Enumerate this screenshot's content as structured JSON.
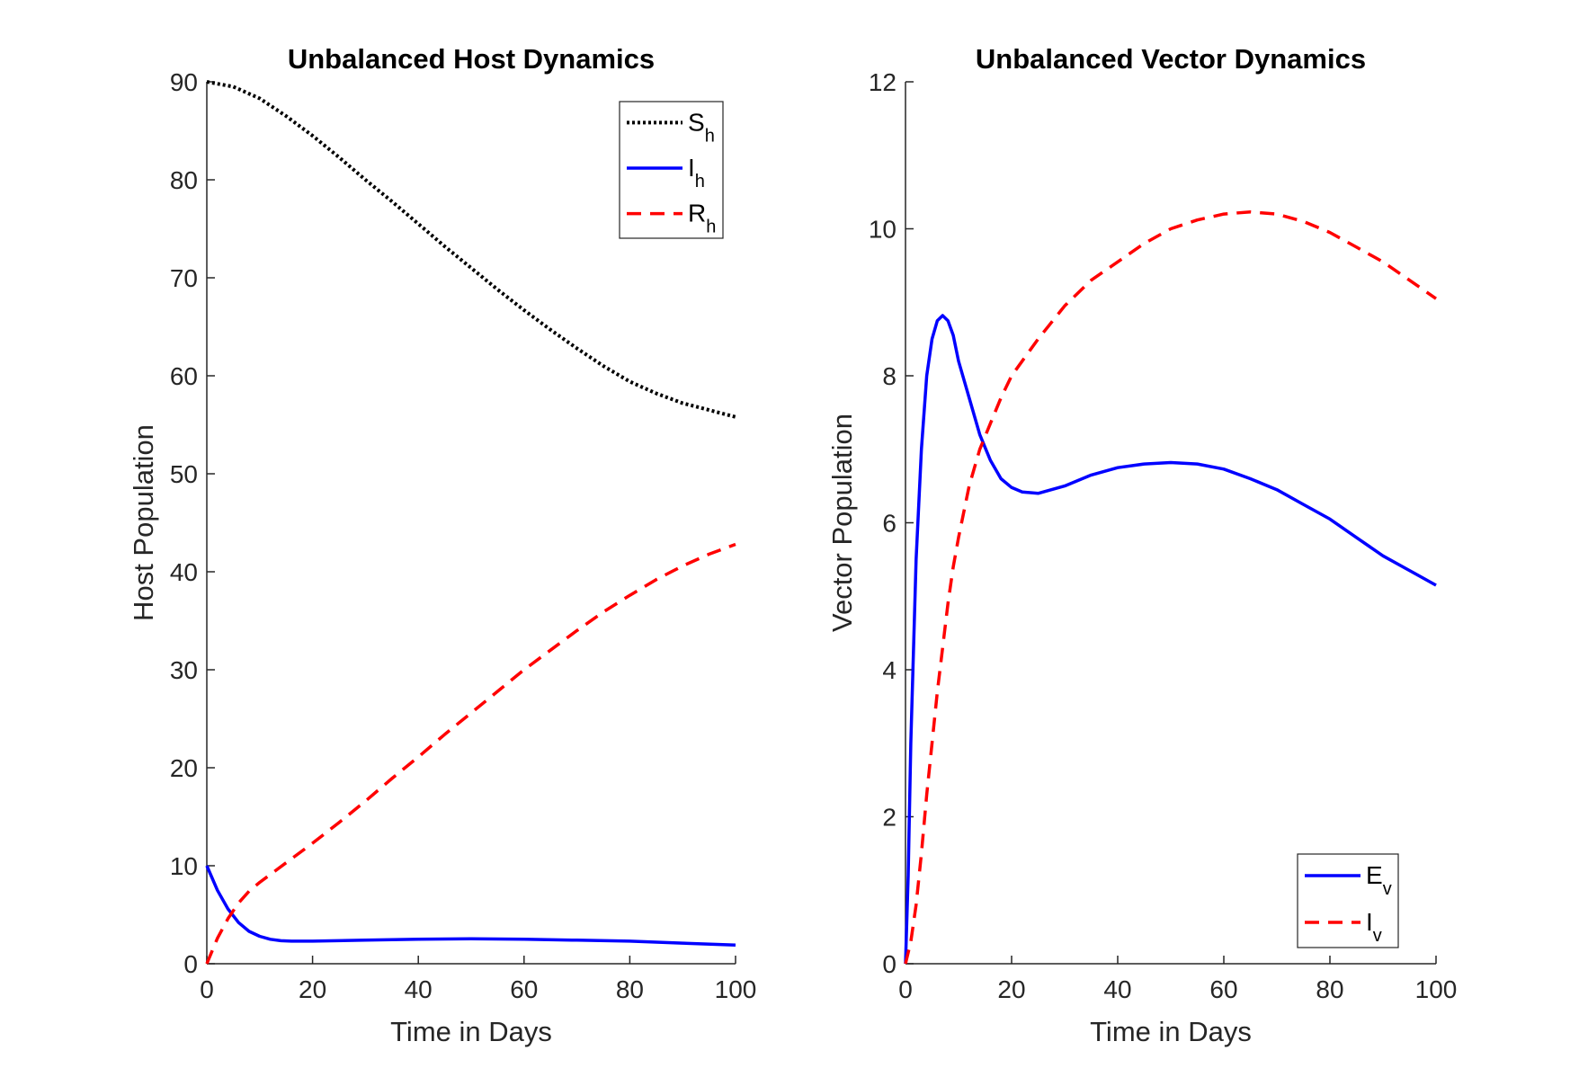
{
  "chart_data": [
    {
      "type": "line",
      "title": "Unbalanced Host Dynamics",
      "xlabel": "Time in Days",
      "ylabel": "Host Population",
      "xlim": [
        0,
        100
      ],
      "ylim": [
        0,
        90
      ],
      "xticks": [
        "0",
        "20",
        "40",
        "60",
        "80",
        "100"
      ],
      "yticks": [
        "0",
        "10",
        "20",
        "30",
        "40",
        "50",
        "60",
        "70",
        "80",
        "90"
      ],
      "legend_position": "top-right",
      "grid": false,
      "series": [
        {
          "name": "S",
          "subscript": "h",
          "color": "#000000",
          "style": "dotted",
          "x": [
            0,
            5,
            10,
            15,
            20,
            25,
            30,
            35,
            40,
            45,
            50,
            55,
            60,
            65,
            70,
            75,
            80,
            85,
            90,
            95,
            100
          ],
          "y": [
            90,
            89.5,
            88.3,
            86.5,
            84.5,
            82.3,
            80,
            77.8,
            75.5,
            73.2,
            71,
            68.8,
            66.7,
            64.7,
            62.8,
            61,
            59.4,
            58.2,
            57.2,
            56.5,
            55.8
          ]
        },
        {
          "name": "I",
          "subscript": "h",
          "color": "#0000ff",
          "style": "solid",
          "x": [
            0,
            2,
            4,
            6,
            8,
            10,
            12,
            14,
            16,
            18,
            20,
            30,
            40,
            50,
            60,
            70,
            80,
            90,
            100
          ],
          "y": [
            10,
            7.5,
            5.6,
            4.2,
            3.3,
            2.8,
            2.5,
            2.35,
            2.3,
            2.3,
            2.3,
            2.4,
            2.5,
            2.55,
            2.5,
            2.4,
            2.3,
            2.1,
            1.9
          ]
        },
        {
          "name": "R",
          "subscript": "h",
          "color": "#ff0000",
          "style": "dashed",
          "x": [
            0,
            2,
            4,
            6,
            8,
            10,
            15,
            20,
            25,
            30,
            35,
            40,
            45,
            50,
            55,
            60,
            65,
            70,
            75,
            80,
            85,
            90,
            95,
            100
          ],
          "y": [
            0,
            2.6,
            4.6,
            6.2,
            7.4,
            8.3,
            10.3,
            12.3,
            14.4,
            16.6,
            18.9,
            21.1,
            23.4,
            25.6,
            27.8,
            30,
            32,
            34,
            35.9,
            37.6,
            39.2,
            40.6,
            41.8,
            42.8
          ]
        }
      ]
    },
    {
      "type": "line",
      "title": "Unbalanced Vector Dynamics",
      "xlabel": "Time in Days",
      "ylabel": "Vector Population",
      "xlim": [
        0,
        100
      ],
      "ylim": [
        0,
        12
      ],
      "xticks": [
        "0",
        "20",
        "40",
        "60",
        "80",
        "100"
      ],
      "yticks": [
        "0",
        "2",
        "4",
        "6",
        "8",
        "10",
        "12"
      ],
      "legend_position": "bottom-right",
      "grid": false,
      "series": [
        {
          "name": "E",
          "subscript": "v",
          "color": "#0000ff",
          "style": "solid",
          "x": [
            0,
            0.5,
            1,
            2,
            3,
            4,
            5,
            6,
            7,
            8,
            9,
            10,
            12,
            14,
            16,
            18,
            20,
            22,
            25,
            30,
            35,
            40,
            45,
            50,
            55,
            60,
            65,
            70,
            75,
            80,
            85,
            90,
            95,
            100
          ],
          "y": [
            0,
            1.2,
            3.0,
            5.5,
            7.0,
            8.0,
            8.5,
            8.75,
            8.82,
            8.75,
            8.55,
            8.2,
            7.7,
            7.2,
            6.85,
            6.6,
            6.48,
            6.42,
            6.4,
            6.5,
            6.65,
            6.75,
            6.8,
            6.82,
            6.8,
            6.73,
            6.6,
            6.45,
            6.25,
            6.05,
            5.8,
            5.55,
            5.35,
            5.15
          ]
        },
        {
          "name": "I",
          "subscript": "v",
          "color": "#ff0000",
          "style": "dashed",
          "x": [
            0,
            1,
            2,
            3,
            4,
            5,
            6,
            7,
            8,
            9,
            10,
            12,
            14,
            16,
            18,
            20,
            25,
            30,
            35,
            40,
            45,
            50,
            55,
            60,
            65,
            70,
            75,
            80,
            85,
            90,
            95,
            100
          ],
          "y": [
            0,
            0.3,
            0.8,
            1.5,
            2.3,
            3.0,
            3.7,
            4.3,
            4.9,
            5.4,
            5.8,
            6.5,
            7.0,
            7.35,
            7.7,
            8.0,
            8.5,
            8.95,
            9.3,
            9.55,
            9.8,
            10.0,
            10.12,
            10.2,
            10.23,
            10.2,
            10.1,
            9.95,
            9.75,
            9.55,
            9.3,
            9.05
          ]
        }
      ]
    }
  ]
}
